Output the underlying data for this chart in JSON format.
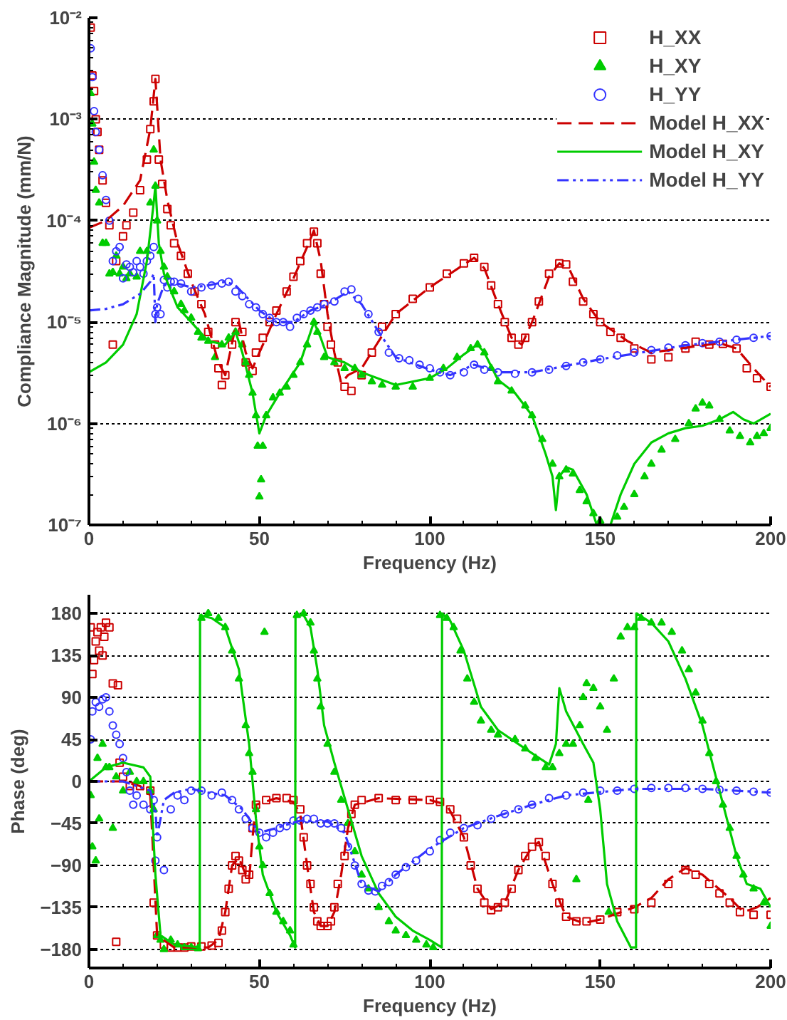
{
  "chart_data": [
    {
      "type": "scatter",
      "xlabel": "Frequency (Hz)",
      "ylabel": "Compliance Magnitude (mm/N)",
      "xlim": [
        0,
        200
      ],
      "xticks": [
        0,
        50,
        100,
        150,
        200
      ],
      "ylim": [
        1e-07,
        0.01
      ],
      "yticks": [
        {
          "value": 1e-07,
          "label": "10⁻⁷"
        },
        {
          "value": 1e-06,
          "label": "10⁻⁶"
        },
        {
          "value": 1e-05,
          "label": "10⁻⁵"
        },
        {
          "value": 0.0001,
          "label": "10⁻⁴"
        },
        {
          "value": 0.001,
          "label": "10⁻³"
        },
        {
          "value": 0.01,
          "label": "10⁻²"
        }
      ],
      "log": "y",
      "grid": "y",
      "legend": "top right",
      "series": [
        {
          "name": "H_XX",
          "marker": "square",
          "color": "#cc0000",
          "x": [
            0.5,
            1,
            1.5,
            2,
            2.5,
            3,
            4,
            5,
            6,
            7,
            8,
            10,
            11,
            13,
            15,
            17,
            18,
            19,
            19.5,
            20.5,
            21.5,
            23,
            24,
            25,
            27,
            29,
            31,
            33,
            35,
            37,
            38,
            39,
            40,
            42,
            43,
            45,
            46,
            48,
            49,
            51,
            53,
            55,
            58,
            60,
            62,
            64,
            66,
            67,
            68,
            69,
            70,
            71,
            73,
            75,
            77,
            80,
            83,
            86,
            90,
            95,
            100,
            105,
            110,
            113,
            116,
            118,
            120,
            122,
            124,
            126,
            128,
            130,
            132,
            135,
            138,
            140,
            142,
            145,
            148,
            150,
            153,
            156,
            160,
            165,
            170,
            175,
            178,
            182,
            186,
            190,
            193,
            196,
            200
          ],
          "values": [
            0.008,
            0.0027,
            0.0019,
            0.001,
            0.00075,
            0.0005,
            0.00025,
            0.00015,
            9e-05,
            6e-06,
            4e-05,
            7e-05,
            9e-05,
            0.00012,
            0.0002,
            0.0004,
            0.0008,
            0.0015,
            0.0025,
            0.0004,
            0.00023,
            0.00013,
            9e-05,
            6e-05,
            4.5e-05,
            3e-05,
            2e-05,
            1.5e-05,
            8e-06,
            6e-06,
            3.5e-06,
            2.4e-06,
            3e-06,
            6e-06,
            1e-05,
            8e-06,
            4e-06,
            3.3e-06,
            5e-06,
            7e-06,
            1e-05,
            1.3e-05,
            2e-05,
            2.8e-05,
            4e-05,
            6e-05,
            7.8e-05,
            6e-05,
            3e-05,
            1.5e-05,
            9e-06,
            6e-06,
            4e-06,
            2.3e-06,
            2.1e-06,
            3e-06,
            5e-06,
            9e-06,
            1.2e-05,
            1.7e-05,
            2.2e-05,
            3e-05,
            3.8e-05,
            4.3e-05,
            3.5e-05,
            2.3e-05,
            1.5e-05,
            1e-05,
            7e-06,
            6e-06,
            7e-06,
            1e-05,
            1.6e-05,
            3e-05,
            3.8e-05,
            3.7e-05,
            2.5e-05,
            1.6e-05,
            1.2e-05,
            1e-05,
            8e-06,
            7e-06,
            5.5e-06,
            4.3e-06,
            4.5e-06,
            5.5e-06,
            6.4e-06,
            6e-06,
            6.1e-06,
            5.5e-06,
            3.5e-06,
            2.8e-06,
            2.3e-06
          ]
        },
        {
          "name": "H_XY",
          "marker": "triangle",
          "color": "#00cc00",
          "x": [
            0.5,
            1,
            1.5,
            2,
            3,
            4,
            5,
            6,
            7,
            8,
            9,
            10,
            11,
            12,
            14,
            15,
            17,
            18,
            19,
            19.5,
            20,
            21,
            22,
            23,
            25,
            27,
            28,
            30,
            32,
            33,
            35,
            37,
            39,
            41,
            43,
            45,
            46,
            47,
            48,
            49,
            49.5,
            50,
            50.5,
            51,
            52,
            54,
            56,
            58,
            60,
            62,
            64,
            66,
            67,
            69,
            72,
            75,
            78,
            80,
            83,
            86,
            90,
            95,
            100,
            104,
            108,
            112,
            114,
            116,
            118,
            120,
            124,
            128,
            130,
            133,
            136,
            138,
            140,
            142,
            144,
            146,
            148,
            150,
            155,
            157,
            160,
            163,
            165,
            168,
            172,
            176,
            178,
            180,
            182,
            185,
            188,
            191,
            194,
            196,
            198,
            200
          ],
          "values": [
            0.0018,
            0.0009,
            0.00038,
            0.0002,
            0.00015,
            6e-05,
            6e-05,
            3e-05,
            3.1e-05,
            4.5e-05,
            3e-05,
            3.5e-05,
            2.7e-05,
            3e-05,
            2.8e-05,
            5e-05,
            5e-05,
            0.00015,
            0.0005,
            0.00022,
            0.0001,
            5e-05,
            3.5e-05,
            2.8e-05,
            2e-05,
            1.5e-05,
            1.3e-05,
            1.1e-05,
            8e-06,
            7e-06,
            6.5e-06,
            4.5e-06,
            6e-06,
            7e-06,
            8e-06,
            6e-06,
            4e-06,
            3e-06,
            2e-06,
            1.2e-06,
            6e-07,
            1.9e-07,
            2.8e-07,
            6e-07,
            1.2e-06,
            1.8e-06,
            2e-06,
            2.3e-06,
            3e-06,
            4e-06,
            6e-06,
            1e-05,
            8e-06,
            4.5e-06,
            4e-06,
            3.5e-06,
            3.5e-06,
            3e-06,
            2.6e-06,
            2.4e-06,
            2.3e-06,
            2.3e-06,
            2.8e-06,
            3.5e-06,
            4.5e-06,
            5.5e-06,
            6e-06,
            5e-06,
            3.5e-06,
            2.6e-06,
            2.1e-06,
            1.5e-06,
            1.2e-06,
            7e-07,
            4e-07,
            3e-07,
            3.5e-07,
            3.2e-07,
            2.2e-07,
            1.7e-07,
            1.3e-07,
            1.1e-07,
            1.2e-07,
            1.5e-07,
            2e-07,
            3e-07,
            4e-07,
            5.5e-07,
            7e-07,
            1e-06,
            1.4e-06,
            1.6e-06,
            1.5e-06,
            1.1e-06,
            8.5e-07,
            7.5e-07,
            6.5e-07,
            7.5e-07,
            8e-07,
            9e-07
          ]
        },
        {
          "name": "H_YY",
          "marker": "circle",
          "color": "#3333ff",
          "x": [
            0.5,
            1,
            1.5,
            2,
            3,
            4,
            5,
            6,
            7,
            8,
            9,
            10,
            11,
            12,
            13,
            14,
            15,
            16,
            17,
            18,
            19,
            19.5,
            20,
            21,
            22,
            23,
            24,
            25,
            27,
            30,
            33,
            36,
            39,
            41,
            43,
            45,
            47,
            49,
            51,
            53,
            55,
            57,
            59,
            61,
            63,
            65,
            67,
            69,
            72,
            75,
            77,
            79,
            82,
            85,
            88,
            91,
            94,
            97,
            100,
            103,
            106,
            110,
            113,
            116,
            120,
            125,
            130,
            135,
            140,
            145,
            150,
            155,
            160,
            165,
            170,
            175,
            180,
            185,
            190,
            195,
            200
          ],
          "values": [
            0.005,
            0.0026,
            0.0012,
            0.00075,
            0.0005,
            0.00028,
            0.00016,
            0.0001,
            4e-05,
            5e-05,
            5.5e-05,
            2.7e-05,
            3.7e-05,
            3.5e-05,
            3.1e-05,
            4e-05,
            3.5e-05,
            3e-05,
            4e-05,
            4.5e-05,
            5.5e-05,
            1.2e-05,
            1.4e-05,
            1.2e-05,
            2.6e-05,
            2.2e-05,
            2.5e-05,
            2.5e-05,
            2.4e-05,
            2e-05,
            2.2e-05,
            2.3e-05,
            2.4e-05,
            2.5e-05,
            2e-05,
            1.8e-05,
            1.5e-05,
            1.4e-05,
            1.2e-05,
            1.1e-05,
            1e-05,
            1e-05,
            9e-06,
            1.1e-05,
            1.2e-05,
            1.3e-05,
            1.4e-05,
            1.5e-05,
            1.6e-05,
            2e-05,
            2.1e-05,
            1.7e-05,
            1.2e-05,
            8e-06,
            5e-06,
            4.4e-06,
            4.2e-06,
            3.8e-06,
            3.5e-06,
            3.2e-06,
            3e-06,
            3.2e-06,
            3.8e-06,
            3.4e-06,
            3.2e-06,
            3.1e-06,
            3.2e-06,
            3.4e-06,
            3.7e-06,
            4e-06,
            4.3e-06,
            4.7e-06,
            5e-06,
            5.3e-06,
            5.6e-06,
            5.9e-06,
            6.2e-06,
            6.4e-06,
            6.7e-06,
            7e-06,
            7.3e-06
          ]
        },
        {
          "name": "Model H_XX",
          "type": "line",
          "line_style": "dashed",
          "color": "#cc0000",
          "x": [
            0,
            5,
            10,
            15,
            18,
            19.5,
            21,
            23,
            26,
            30,
            34,
            38,
            40,
            43,
            44,
            46,
            48,
            50,
            55,
            60,
            64,
            66,
            68,
            70,
            72,
            74,
            76,
            80,
            90,
            100,
            110,
            113,
            116,
            120,
            124,
            127,
            130,
            135,
            138,
            141,
            145,
            150,
            158,
            165,
            175,
            185,
            190,
            195,
            200
          ],
          "values": [
            8.5e-05,
            0.0001,
            0.00014,
            0.00025,
            0.0008,
            0.0025,
            0.0004,
            0.00016,
            6e-05,
            2.5e-05,
            1.2e-05,
            4e-06,
            3e-06,
            9e-06,
            1e-05,
            5e-06,
            3.5e-06,
            5e-06,
            1.2e-05,
            2.7e-05,
            5.5e-05,
            8e-05,
            4e-05,
            1.2e-05,
            5e-06,
            2.5e-06,
            3e-06,
            3.5e-06,
            1.2e-05,
            2.2e-05,
            3.7e-05,
            4.3e-05,
            3.4e-05,
            1.5e-05,
            7e-06,
            6e-06,
            1e-05,
            2.8e-05,
            3.8e-05,
            3.3e-05,
            1.7e-05,
            1e-05,
            6.5e-06,
            5e-06,
            5.6e-06,
            6.2e-06,
            5.5e-06,
            3.5e-06,
            2.3e-06
          ]
        },
        {
          "name": "Model H_XY",
          "type": "line",
          "line_style": "solid",
          "color": "#00cc00",
          "x": [
            0,
            5,
            10,
            14,
            17,
            19,
            19.5,
            20.5,
            22,
            26,
            30,
            35,
            40,
            43,
            45,
            48,
            50,
            52,
            56,
            62,
            66,
            68,
            70,
            75,
            80,
            90,
            100,
            105,
            110,
            114,
            116,
            120,
            125,
            130,
            134,
            136,
            137,
            138,
            140,
            142,
            146,
            149,
            151,
            153,
            156,
            160,
            165,
            170,
            175,
            180,
            185,
            189,
            192,
            195,
            200
          ],
          "values": [
            3.2e-06,
            4e-06,
            6e-06,
            1.2e-05,
            4e-05,
            0.00015,
            0.00022,
            6e-05,
            3e-05,
            1.4e-05,
            1e-05,
            6.5e-06,
            6e-06,
            8e-06,
            5e-06,
            2e-06,
            8e-07,
            1.2e-06,
            2e-06,
            4e-06,
            1e-05,
            7e-06,
            4.5e-06,
            4e-06,
            3.2e-06,
            2.4e-06,
            2.8e-06,
            3.5e-06,
            4.8e-06,
            6e-06,
            5e-06,
            2.7e-06,
            2e-06,
            1.2e-06,
            5e-07,
            3e-07,
            1.4e-07,
            3e-07,
            3.7e-07,
            3.5e-07,
            2e-07,
            1e-07,
            null,
            1e-07,
            2e-07,
            4e-07,
            6.5e-07,
            8e-07,
            9e-07,
            9.5e-07,
            1.1e-06,
            1.3e-06,
            1.1e-06,
            1e-06,
            1.25e-06
          ]
        },
        {
          "name": "Model H_YY",
          "type": "line",
          "line_style": "dashdot",
          "color": "#3333ff",
          "x": [
            0,
            5,
            10,
            15,
            18,
            19,
            19.5,
            20,
            22,
            26,
            30,
            35,
            40,
            43,
            50,
            55,
            60,
            65,
            70,
            76,
            80,
            85,
            90,
            100,
            106,
            113,
            120,
            130,
            150,
            175,
            200
          ],
          "values": [
            1.3e-05,
            1.35e-05,
            1.5e-05,
            1.9e-05,
            2.5e-05,
            3e-05,
            1e-05,
            1.5e-05,
            2.3e-05,
            2.4e-05,
            2.2e-05,
            2.3e-05,
            2.5e-05,
            2.3e-05,
            1.3e-05,
            1e-05,
            1e-05,
            1.3e-05,
            1.5e-05,
            2e-05,
            1.5e-05,
            8e-06,
            4.5e-06,
            3.4e-06,
            3e-06,
            3.8e-06,
            3.2e-06,
            3.2e-06,
            4.3e-06,
            5.9e-06,
            7.3e-06
          ]
        }
      ]
    },
    {
      "type": "scatter",
      "xlabel": "Frequency (Hz)",
      "ylabel": "Phase (deg)",
      "xlim": [
        0,
        200
      ],
      "xticks": [
        0,
        50,
        100,
        150,
        200
      ],
      "ylim": [
        -200,
        200
      ],
      "yticks": [
        -180,
        -135,
        -90,
        -45,
        0,
        45,
        90,
        135,
        180
      ],
      "grid": "y",
      "series": [
        {
          "marker": "square",
          "color": "#cc0000",
          "x": [
            0.5,
            1,
            1.5,
            2,
            2.5,
            3,
            3.5,
            4,
            4.5,
            5,
            6,
            7,
            8,
            8.5,
            9,
            10,
            12,
            15,
            18,
            19,
            20,
            22,
            24,
            26,
            28,
            30,
            33,
            36,
            38,
            39,
            40,
            41,
            42,
            43,
            44,
            45,
            46,
            47,
            48,
            49,
            52,
            55,
            58,
            60,
            62,
            63,
            64,
            65,
            66,
            67,
            68,
            70,
            71,
            72,
            73,
            75,
            76,
            77,
            78,
            80,
            85,
            90,
            95,
            100,
            103,
            106,
            108,
            110,
            112,
            114,
            116,
            118,
            120,
            122,
            124,
            126,
            128,
            130,
            132,
            134,
            136,
            138,
            140,
            143,
            146,
            150,
            155,
            160,
            165,
            170,
            175,
            178,
            182,
            185,
            188,
            191,
            195,
            200
          ],
          "values": [
            165,
            115,
            130,
            150,
            160,
            140,
            165,
            135,
            155,
            170,
            165,
            105,
            -172,
            103,
            20,
            5,
            -5,
            -5,
            -10,
            -130,
            -165,
            -175,
            -178,
            -178,
            -178,
            -177,
            -177,
            -176,
            -173,
            -160,
            -140,
            -115,
            -90,
            -80,
            -85,
            -95,
            -105,
            -100,
            -50,
            -25,
            -20,
            -18,
            -18,
            -20,
            -30,
            -60,
            -90,
            -110,
            -135,
            -150,
            -155,
            -155,
            -150,
            -135,
            -110,
            -80,
            -50,
            -35,
            -25,
            -20,
            -18,
            -20,
            -20,
            -20,
            -22,
            -30,
            -40,
            -60,
            -90,
            -115,
            -130,
            -138,
            -135,
            -130,
            -115,
            -95,
            -80,
            -70,
            -65,
            -80,
            -110,
            -130,
            -145,
            -150,
            -150,
            -148,
            -140,
            -137,
            -130,
            -110,
            -95,
            -100,
            -110,
            -120,
            -130,
            -140,
            -143,
            -143
          ]
        },
        {
          "marker": "triangle",
          "color": "#00cc00",
          "x": [
            0.5,
            1,
            2,
            2.5,
            3,
            4,
            5,
            6,
            7,
            8,
            10,
            12,
            14,
            16,
            18,
            19,
            20,
            21,
            22,
            24,
            26,
            28,
            30,
            32,
            33,
            35,
            38,
            40,
            42,
            44,
            46,
            47,
            48,
            49,
            50,
            51,
            51.5,
            53,
            55,
            57,
            59,
            60,
            61,
            63,
            65,
            66,
            67,
            68,
            70,
            72,
            74,
            76,
            78,
            80,
            82,
            85,
            88,
            90,
            93,
            96,
            99,
            101,
            103,
            105,
            107,
            109,
            111,
            113,
            115,
            118,
            120,
            125,
            128,
            131,
            134,
            136,
            138,
            140,
            142,
            143,
            144,
            145,
            146,
            146.5,
            148,
            150,
            152,
            152.5,
            154,
            156,
            158,
            160,
            162,
            165,
            168,
            171,
            174,
            176,
            178,
            180,
            182,
            184,
            186,
            188,
            190,
            192,
            195,
            198,
            200
          ],
          "values": [
            -15,
            -70,
            -85,
            25,
            -40,
            40,
            15,
            15,
            -50,
            5,
            -10,
            10,
            0,
            0,
            -10,
            -30,
            -165,
            -170,
            -180,
            -170,
            -175,
            -178,
            -178,
            -179,
            175,
            180,
            175,
            165,
            140,
            110,
            60,
            30,
            10,
            -30,
            -70,
            -90,
            160,
            -120,
            -140,
            -150,
            -160,
            -175,
            178,
            180,
            170,
            140,
            110,
            80,
            40,
            10,
            -20,
            -45,
            -75,
            -100,
            -115,
            -135,
            -150,
            -160,
            -165,
            -170,
            -175,
            -178,
            178,
            175,
            165,
            140,
            110,
            85,
            65,
            55,
            50,
            45,
            35,
            25,
            15,
            15,
            30,
            40,
            40,
            -105,
            60,
            90,
            105,
            -20,
            100,
            80,
            55,
            -140,
            110,
            155,
            165,
            165,
            175,
            170,
            170,
            160,
            140,
            120,
            95,
            65,
            30,
            0,
            -25,
            -50,
            -80,
            -100,
            -115,
            -130,
            -155
          ]
        },
        {
          "marker": "circle",
          "color": "#3333ff",
          "x": [
            0.5,
            1,
            2,
            3,
            4,
            5,
            6,
            7,
            8,
            9,
            10,
            11,
            12,
            13,
            14,
            16,
            18,
            19,
            19.5,
            20,
            22,
            24,
            26,
            28,
            30,
            33,
            36,
            39,
            42,
            44,
            46,
            48,
            50,
            52,
            54,
            56,
            58,
            60,
            62,
            64,
            66,
            68,
            70,
            72,
            74,
            76,
            78,
            80,
            82,
            84,
            86,
            88,
            90,
            93,
            96,
            100,
            103,
            106,
            110,
            114,
            118,
            122,
            126,
            130,
            135,
            140,
            145,
            150,
            155,
            160,
            165,
            170,
            175,
            180,
            185,
            190,
            195,
            200
          ],
          "values": [
            45,
            75,
            85,
            80,
            88,
            90,
            75,
            60,
            50,
            40,
            25,
            10,
            -10,
            -25,
            -15,
            -25,
            -30,
            -20,
            -85,
            -60,
            -95,
            -30,
            -15,
            -20,
            -10,
            -10,
            -15,
            -12,
            -20,
            -30,
            -40,
            -50,
            -55,
            -60,
            -55,
            -50,
            -48,
            -42,
            -42,
            -40,
            -40,
            -45,
            -45,
            -45,
            -50,
            -70,
            -90,
            -110,
            -117,
            -118,
            -112,
            -108,
            -100,
            -92,
            -85,
            -75,
            -63,
            -55,
            -50,
            -47,
            -40,
            -35,
            -30,
            -25,
            -18,
            -15,
            -12,
            -10,
            -10,
            -8,
            -7,
            -7,
            -7,
            -8,
            -9,
            -10,
            -11,
            -12
          ]
        },
        {
          "type": "line",
          "line_style": "dashed",
          "color": "#cc0000",
          "x": [
            0,
            10,
            15,
            18,
            19,
            20,
            25,
            35,
            38,
            40,
            42,
            44,
            46,
            47,
            48,
            49,
            55,
            60,
            62,
            64,
            66,
            68,
            70,
            72,
            74,
            76,
            78,
            85,
            100,
            105,
            110,
            114,
            118,
            122,
            126,
            130,
            132,
            136,
            140,
            145,
            150,
            160,
            165,
            170,
            175,
            180,
            188,
            192,
            196,
            200
          ],
          "values": [
            0,
            0,
            -5,
            -15,
            -90,
            -165,
            -178,
            -178,
            -170,
            -140,
            -90,
            -82,
            -100,
            -105,
            -60,
            -25,
            -18,
            -22,
            -35,
            -90,
            -140,
            -155,
            -155,
            -140,
            -100,
            -50,
            -25,
            -18,
            -20,
            -25,
            -60,
            -115,
            -137,
            -130,
            -95,
            -70,
            -65,
            -110,
            -145,
            -152,
            -148,
            -135,
            -125,
            -105,
            -93,
            -100,
            -125,
            -140,
            -135,
            -125
          ]
        },
        {
          "type": "line",
          "line_style": "solid",
          "color": "#00cc00",
          "x": [
            0,
            5,
            10,
            16,
            18,
            19.5,
            21,
            25,
            32.5,
            32.6,
            36,
            40,
            44,
            47,
            49,
            51,
            55,
            59,
            60.5,
            60.6,
            63,
            65,
            67,
            69,
            72,
            76,
            80,
            85,
            90,
            95,
            100,
            103.5,
            103.6,
            106,
            110,
            115,
            120,
            128,
            135,
            137,
            138,
            140,
            145,
            148,
            150,
            152,
            155,
            159,
            160.5,
            160.6,
            165,
            170,
            175,
            180,
            185,
            190,
            193,
            197,
            200
          ],
          "values": [
            0,
            15,
            20,
            15,
            5,
            -100,
            -165,
            -175,
            -178,
            178,
            175,
            165,
            120,
            40,
            -40,
            -100,
            -140,
            -165,
            -178,
            178,
            178,
            165,
            120,
            60,
            20,
            -30,
            -80,
            -120,
            -145,
            -160,
            -170,
            -178,
            180,
            172,
            140,
            80,
            55,
            35,
            18,
            40,
            100,
            75,
            40,
            20,
            -30,
            -110,
            -150,
            -178,
            -178,
            180,
            170,
            150,
            110,
            60,
            -10,
            -80,
            -110,
            -115,
            -135
          ]
        },
        {
          "type": "line",
          "line_style": "dashdot",
          "color": "#3333ff",
          "x": [
            0,
            10,
            18,
            19.5,
            20,
            22,
            25,
            30,
            35,
            40,
            45,
            50,
            55,
            62,
            70,
            75,
            80,
            85,
            90,
            100,
            110,
            120,
            130,
            140,
            160,
            180,
            200
          ],
          "values": [
            0,
            0,
            -10,
            -30,
            -60,
            -20,
            -12,
            -8,
            -12,
            -15,
            -30,
            -55,
            -50,
            -42,
            -43,
            -55,
            -110,
            -118,
            -100,
            -72,
            -50,
            -37,
            -25,
            -15,
            -8,
            -8,
            -12
          ]
        }
      ]
    }
  ]
}
